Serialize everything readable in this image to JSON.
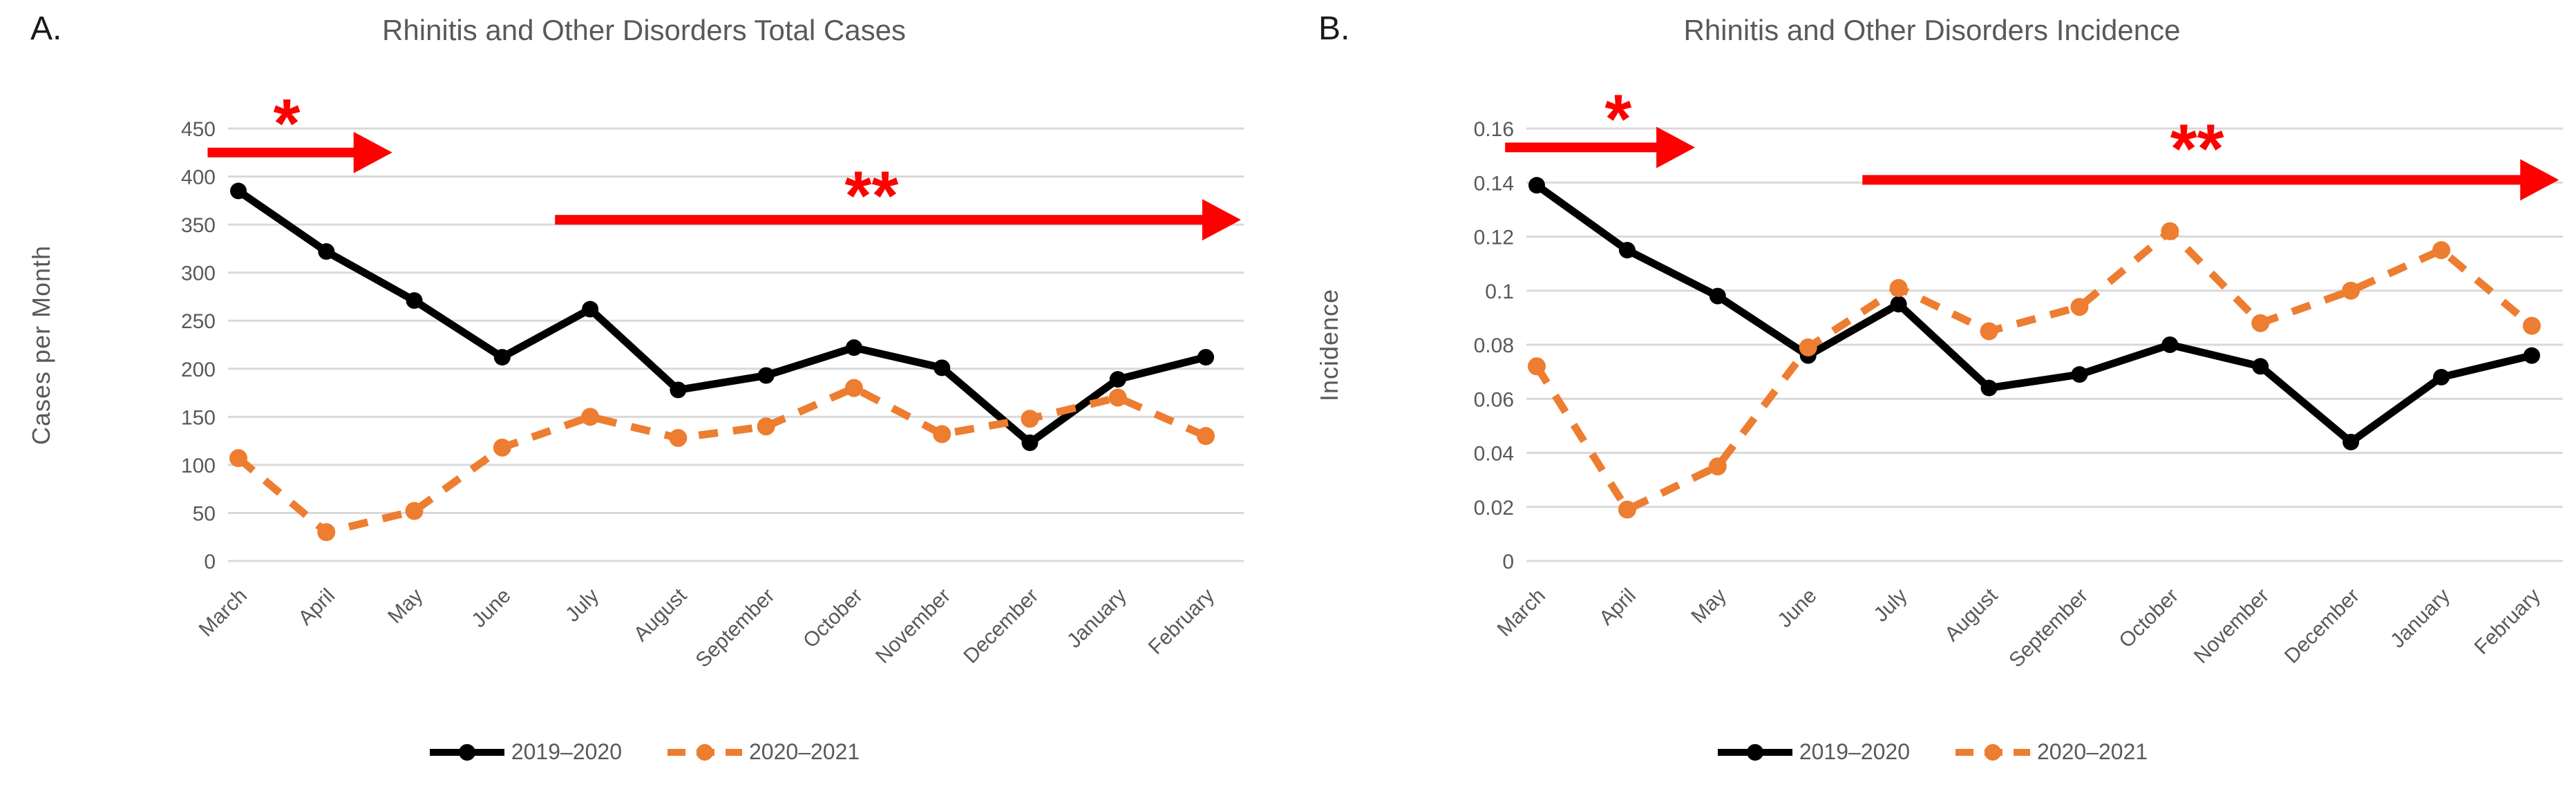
{
  "colors": {
    "series_2019_2020": "#000000",
    "series_2020_2021": "#ED7D31",
    "annotation_red": "#FF0000",
    "gridline": "#D9D9D9",
    "axis_text": "#595959",
    "title_text": "#595959"
  },
  "chart_data": [
    {
      "type": "line",
      "panel_label": "A.",
      "title": "Rhinitis and Other Disorders Total Cases",
      "xlabel": "",
      "ylabel": "Cases per Month",
      "grid": true,
      "legend_position": "bottom",
      "ylim": [
        0,
        450
      ],
      "y_ticks": [
        {
          "value": 450,
          "label": "450"
        },
        {
          "value": 400,
          "label": "400"
        },
        {
          "value": 350,
          "label": "350"
        },
        {
          "value": 300,
          "label": "300"
        },
        {
          "value": 250,
          "label": "250"
        },
        {
          "value": 200,
          "label": "200"
        },
        {
          "value": 150,
          "label": "150"
        },
        {
          "value": 100,
          "label": "100"
        },
        {
          "value": 50,
          "label": "50"
        },
        {
          "value": 0,
          "label": "0"
        }
      ],
      "categories": [
        "March",
        "April",
        "May",
        "June",
        "July",
        "August",
        "September",
        "October",
        "November",
        "December",
        "January",
        "February"
      ],
      "series": [
        {
          "name": "2019–2020",
          "line_style": "solid",
          "color": "#000000",
          "values": [
            385,
            322,
            271,
            212,
            262,
            178,
            193,
            222,
            201,
            123,
            189,
            212
          ]
        },
        {
          "name": "2020–2021",
          "line_style": "dashed",
          "color": "#ED7D31",
          "values": [
            107,
            30,
            52,
            118,
            150,
            128,
            140,
            180,
            132,
            148,
            170,
            130
          ]
        }
      ],
      "annotations": {
        "arrows": [
          {
            "label": "*",
            "x_start": -0.35,
            "x_end": 1.75,
            "y": 425
          },
          {
            "label": "**",
            "x_start": 3.6,
            "x_end": 11.4,
            "y": 355
          }
        ],
        "asterisks": [
          {
            "text": "*",
            "x": 0.55,
            "y": 465
          },
          {
            "text": "**",
            "x": 7.2,
            "y": 390
          }
        ]
      }
    },
    {
      "type": "line",
      "panel_label": "B.",
      "title": "Rhinitis and Other Disorders Incidence",
      "xlabel": "",
      "ylabel": "Incidence",
      "grid": true,
      "legend_position": "bottom",
      "ylim": [
        0,
        0.16
      ],
      "y_ticks": [
        {
          "value": 0.16,
          "label": "0.16"
        },
        {
          "value": 0.14,
          "label": "0.14"
        },
        {
          "value": 0.12,
          "label": "0.12"
        },
        {
          "value": 0.1,
          "label": "0.1"
        },
        {
          "value": 0.08,
          "label": "0.08"
        },
        {
          "value": 0.06,
          "label": "0.06"
        },
        {
          "value": 0.04,
          "label": "0.04"
        },
        {
          "value": 0.02,
          "label": "0.02"
        },
        {
          "value": 0,
          "label": "0"
        }
      ],
      "categories": [
        "March",
        "April",
        "May",
        "June",
        "July",
        "August",
        "September",
        "October",
        "November",
        "December",
        "January",
        "February"
      ],
      "series": [
        {
          "name": "2019–2020",
          "line_style": "solid",
          "color": "#000000",
          "values": [
            0.139,
            0.115,
            0.098,
            0.076,
            0.095,
            0.064,
            0.069,
            0.08,
            0.072,
            0.044,
            0.068,
            0.076
          ]
        },
        {
          "name": "2020–2021",
          "line_style": "dashed",
          "color": "#ED7D31",
          "values": [
            0.072,
            0.019,
            0.035,
            0.079,
            0.101,
            0.085,
            0.094,
            0.122,
            0.088,
            0.1,
            0.115,
            0.087
          ]
        }
      ],
      "annotations": {
        "arrows": [
          {
            "label": "*",
            "x_start": -0.35,
            "x_end": 1.75,
            "y": 0.153
          },
          {
            "label": "**",
            "x_start": 3.6,
            "x_end": 11.3,
            "y": 0.141
          }
        ],
        "asterisks": [
          {
            "text": "*",
            "x": 0.9,
            "y": 0.167
          },
          {
            "text": "**",
            "x": 7.3,
            "y": 0.156
          }
        ]
      }
    }
  ]
}
